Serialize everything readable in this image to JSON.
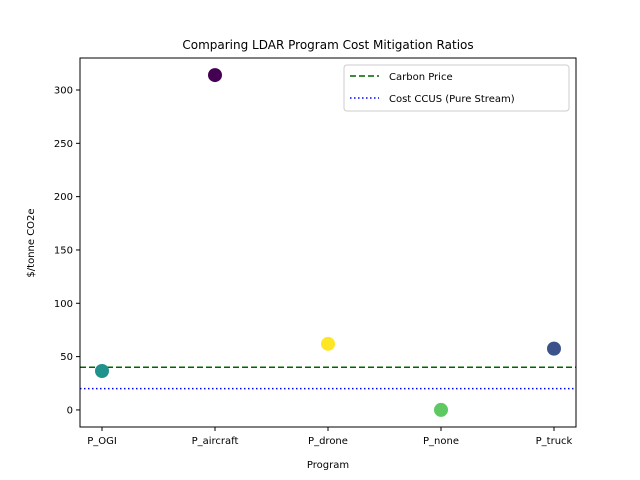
{
  "chart_data": {
    "type": "scatter",
    "title": "Comparing LDAR Program Cost Mitigation Ratios",
    "xlabel": "Program",
    "ylabel": "$/tonne CO2e",
    "categories": [
      "P_OGI",
      "P_aircraft",
      "P_drone",
      "P_none",
      "P_truck"
    ],
    "values": [
      36.5,
      314,
      62,
      0,
      57.5
    ],
    "point_colors": [
      "#21918c",
      "#440154",
      "#fde725",
      "#5ec962",
      "#3b528b"
    ],
    "ylim": [
      -16,
      330
    ],
    "yticks": [
      0,
      50,
      100,
      150,
      200,
      250,
      300
    ],
    "grid": false,
    "legend_position": "top-right",
    "reference_lines": [
      {
        "name": "Carbon Price",
        "value": 40,
        "color": "#006400",
        "style": "dashed"
      },
      {
        "name": "Cost CCUS (Pure Stream)",
        "value": 20,
        "color": "#0000ff",
        "style": "dotted"
      }
    ]
  }
}
